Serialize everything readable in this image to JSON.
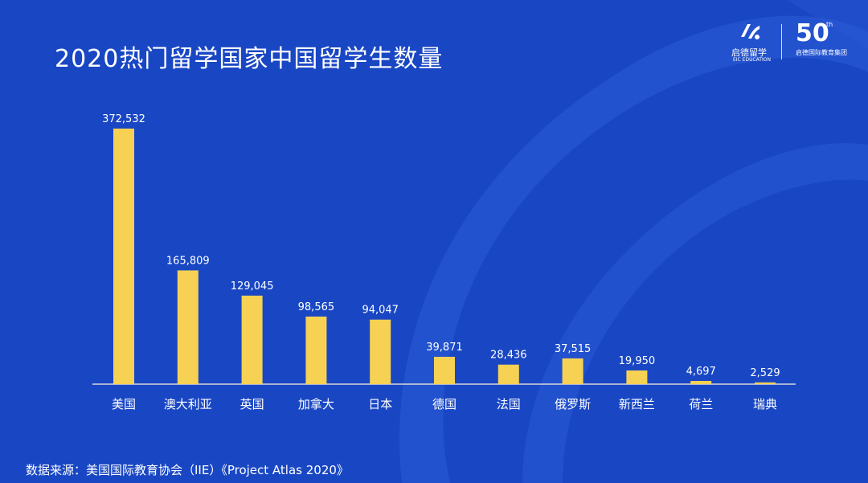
{
  "title": "2020热门留学国家中国留学生数量",
  "logo": {
    "cn": "启德留学",
    "en": "EIC EDUCATION",
    "anniversary": "50",
    "anniversary_suffix": "th",
    "anniversary_sub": "启德国际教育集团"
  },
  "source": "数据来源：美国国际教育协会（IIE）《Project Atlas 2020》",
  "colors": {
    "background": "#1947c4",
    "bar": "#f7d153",
    "text": "#ffffff"
  },
  "chart_data": {
    "type": "bar",
    "categories": [
      "美国",
      "澳大利亚",
      "英国",
      "加拿大",
      "日本",
      "德国",
      "法国",
      "俄罗斯",
      "新西兰",
      "荷兰",
      "瑞典"
    ],
    "values": [
      372532,
      165809,
      129045,
      98565,
      94047,
      39871,
      28436,
      37515,
      19950,
      4697,
      2529
    ],
    "value_labels": [
      "372,532",
      "165,809",
      "129,045",
      "98,565",
      "94,047",
      "39,871",
      "28,436",
      "37,515",
      "19,950",
      "4,697",
      "2,529"
    ],
    "title": "2020热门留学国家中国留学生数量",
    "xlabel": "",
    "ylabel": "",
    "ylim": [
      0,
      372532
    ],
    "grid": false,
    "legend": "none"
  }
}
